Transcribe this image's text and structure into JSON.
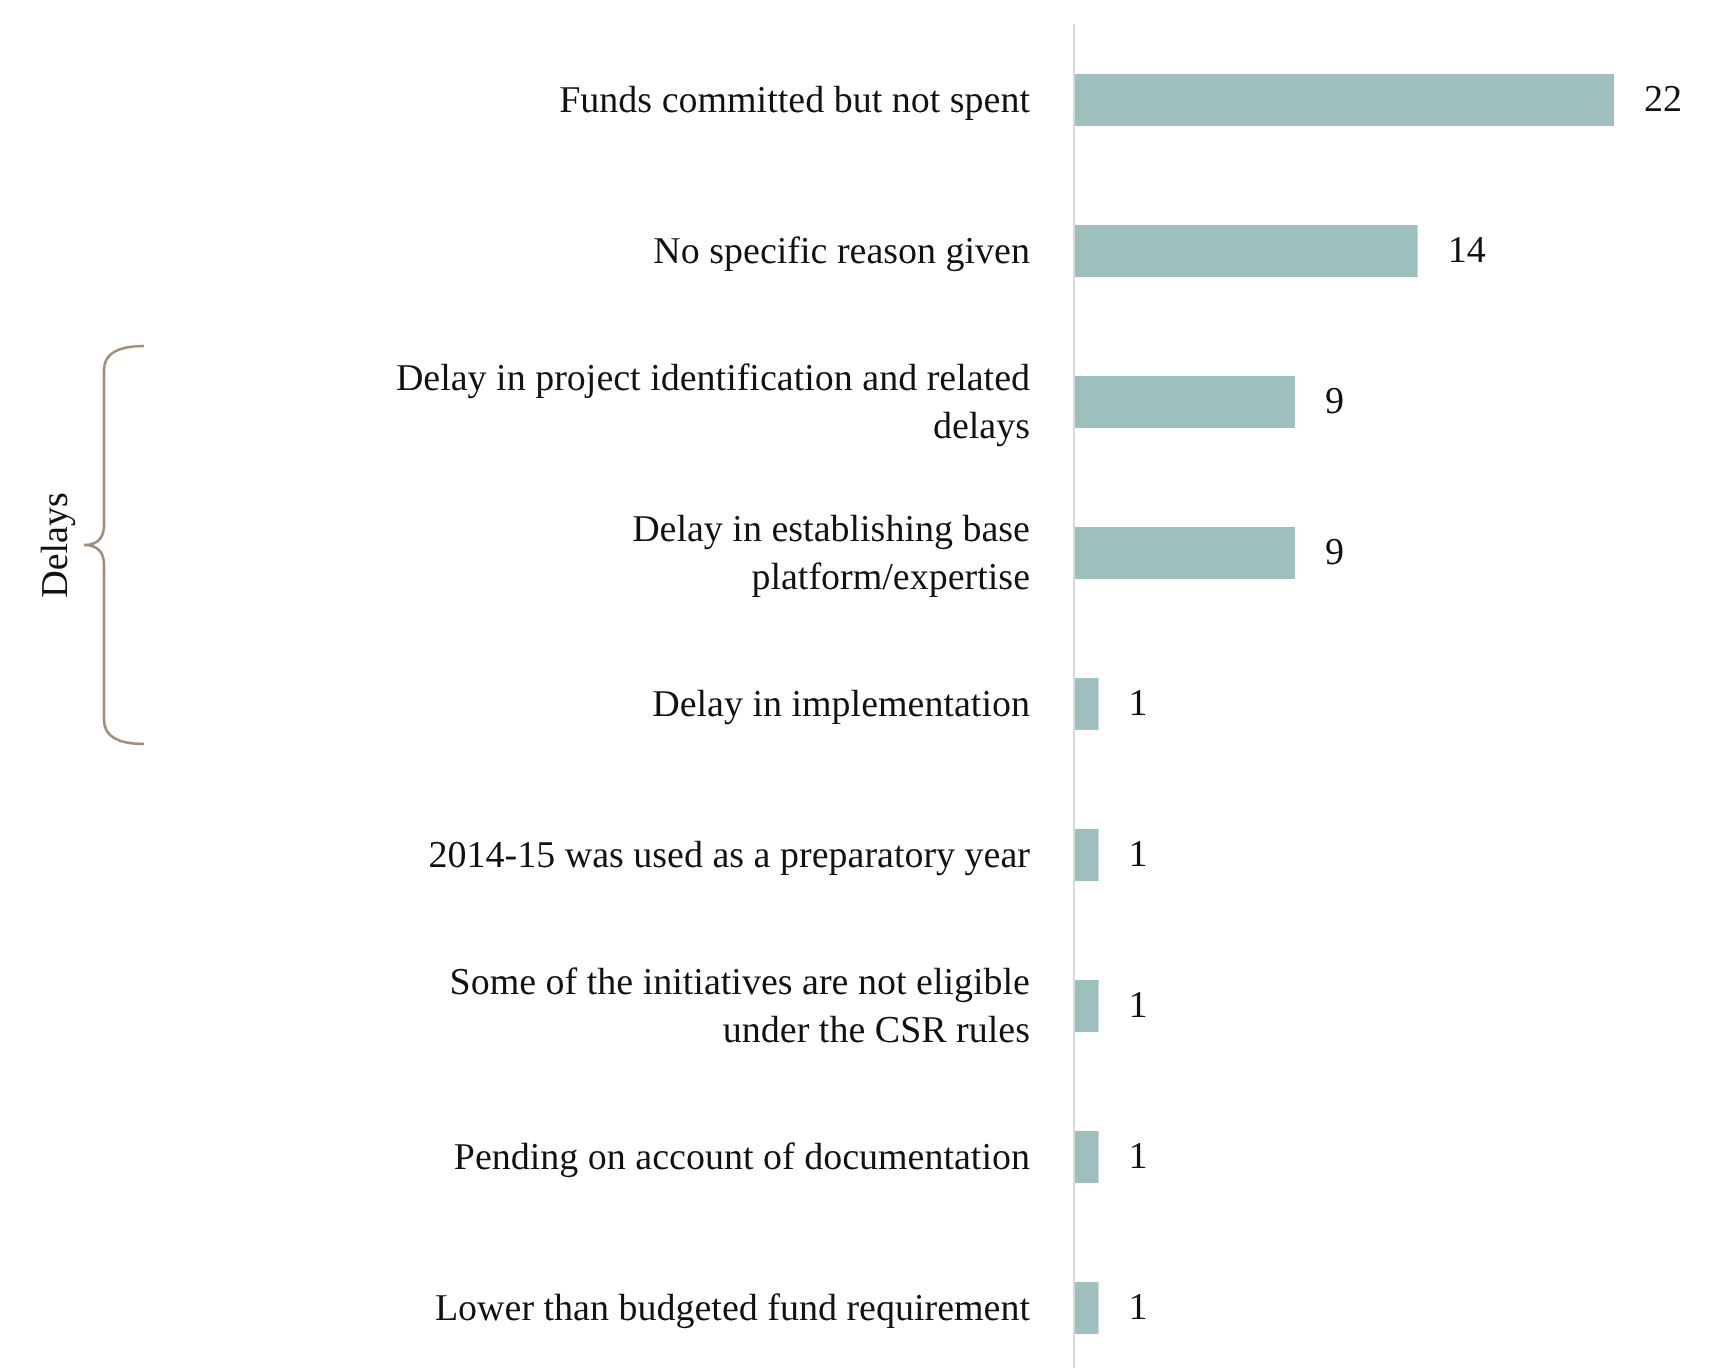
{
  "chart_data": {
    "type": "bar",
    "orientation": "horizontal",
    "categories": [
      "Funds committed but not spent",
      "No specific reason given",
      "Delay in project identification and related delays",
      "Delay in establishing base platform/expertise",
      "Delay in implementation",
      "2014-15 was used as a preparatory year",
      "Some of the initiatives are not eligible under the CSR rules",
      "Pending on account of documentation",
      "Lower than budgeted fund requirement"
    ],
    "values": [
      22,
      14,
      9,
      9,
      1,
      1,
      1,
      1,
      1
    ],
    "color": "#9dbfbd",
    "data_labels": true,
    "annotations": [
      "Delays"
    ]
  }
}
